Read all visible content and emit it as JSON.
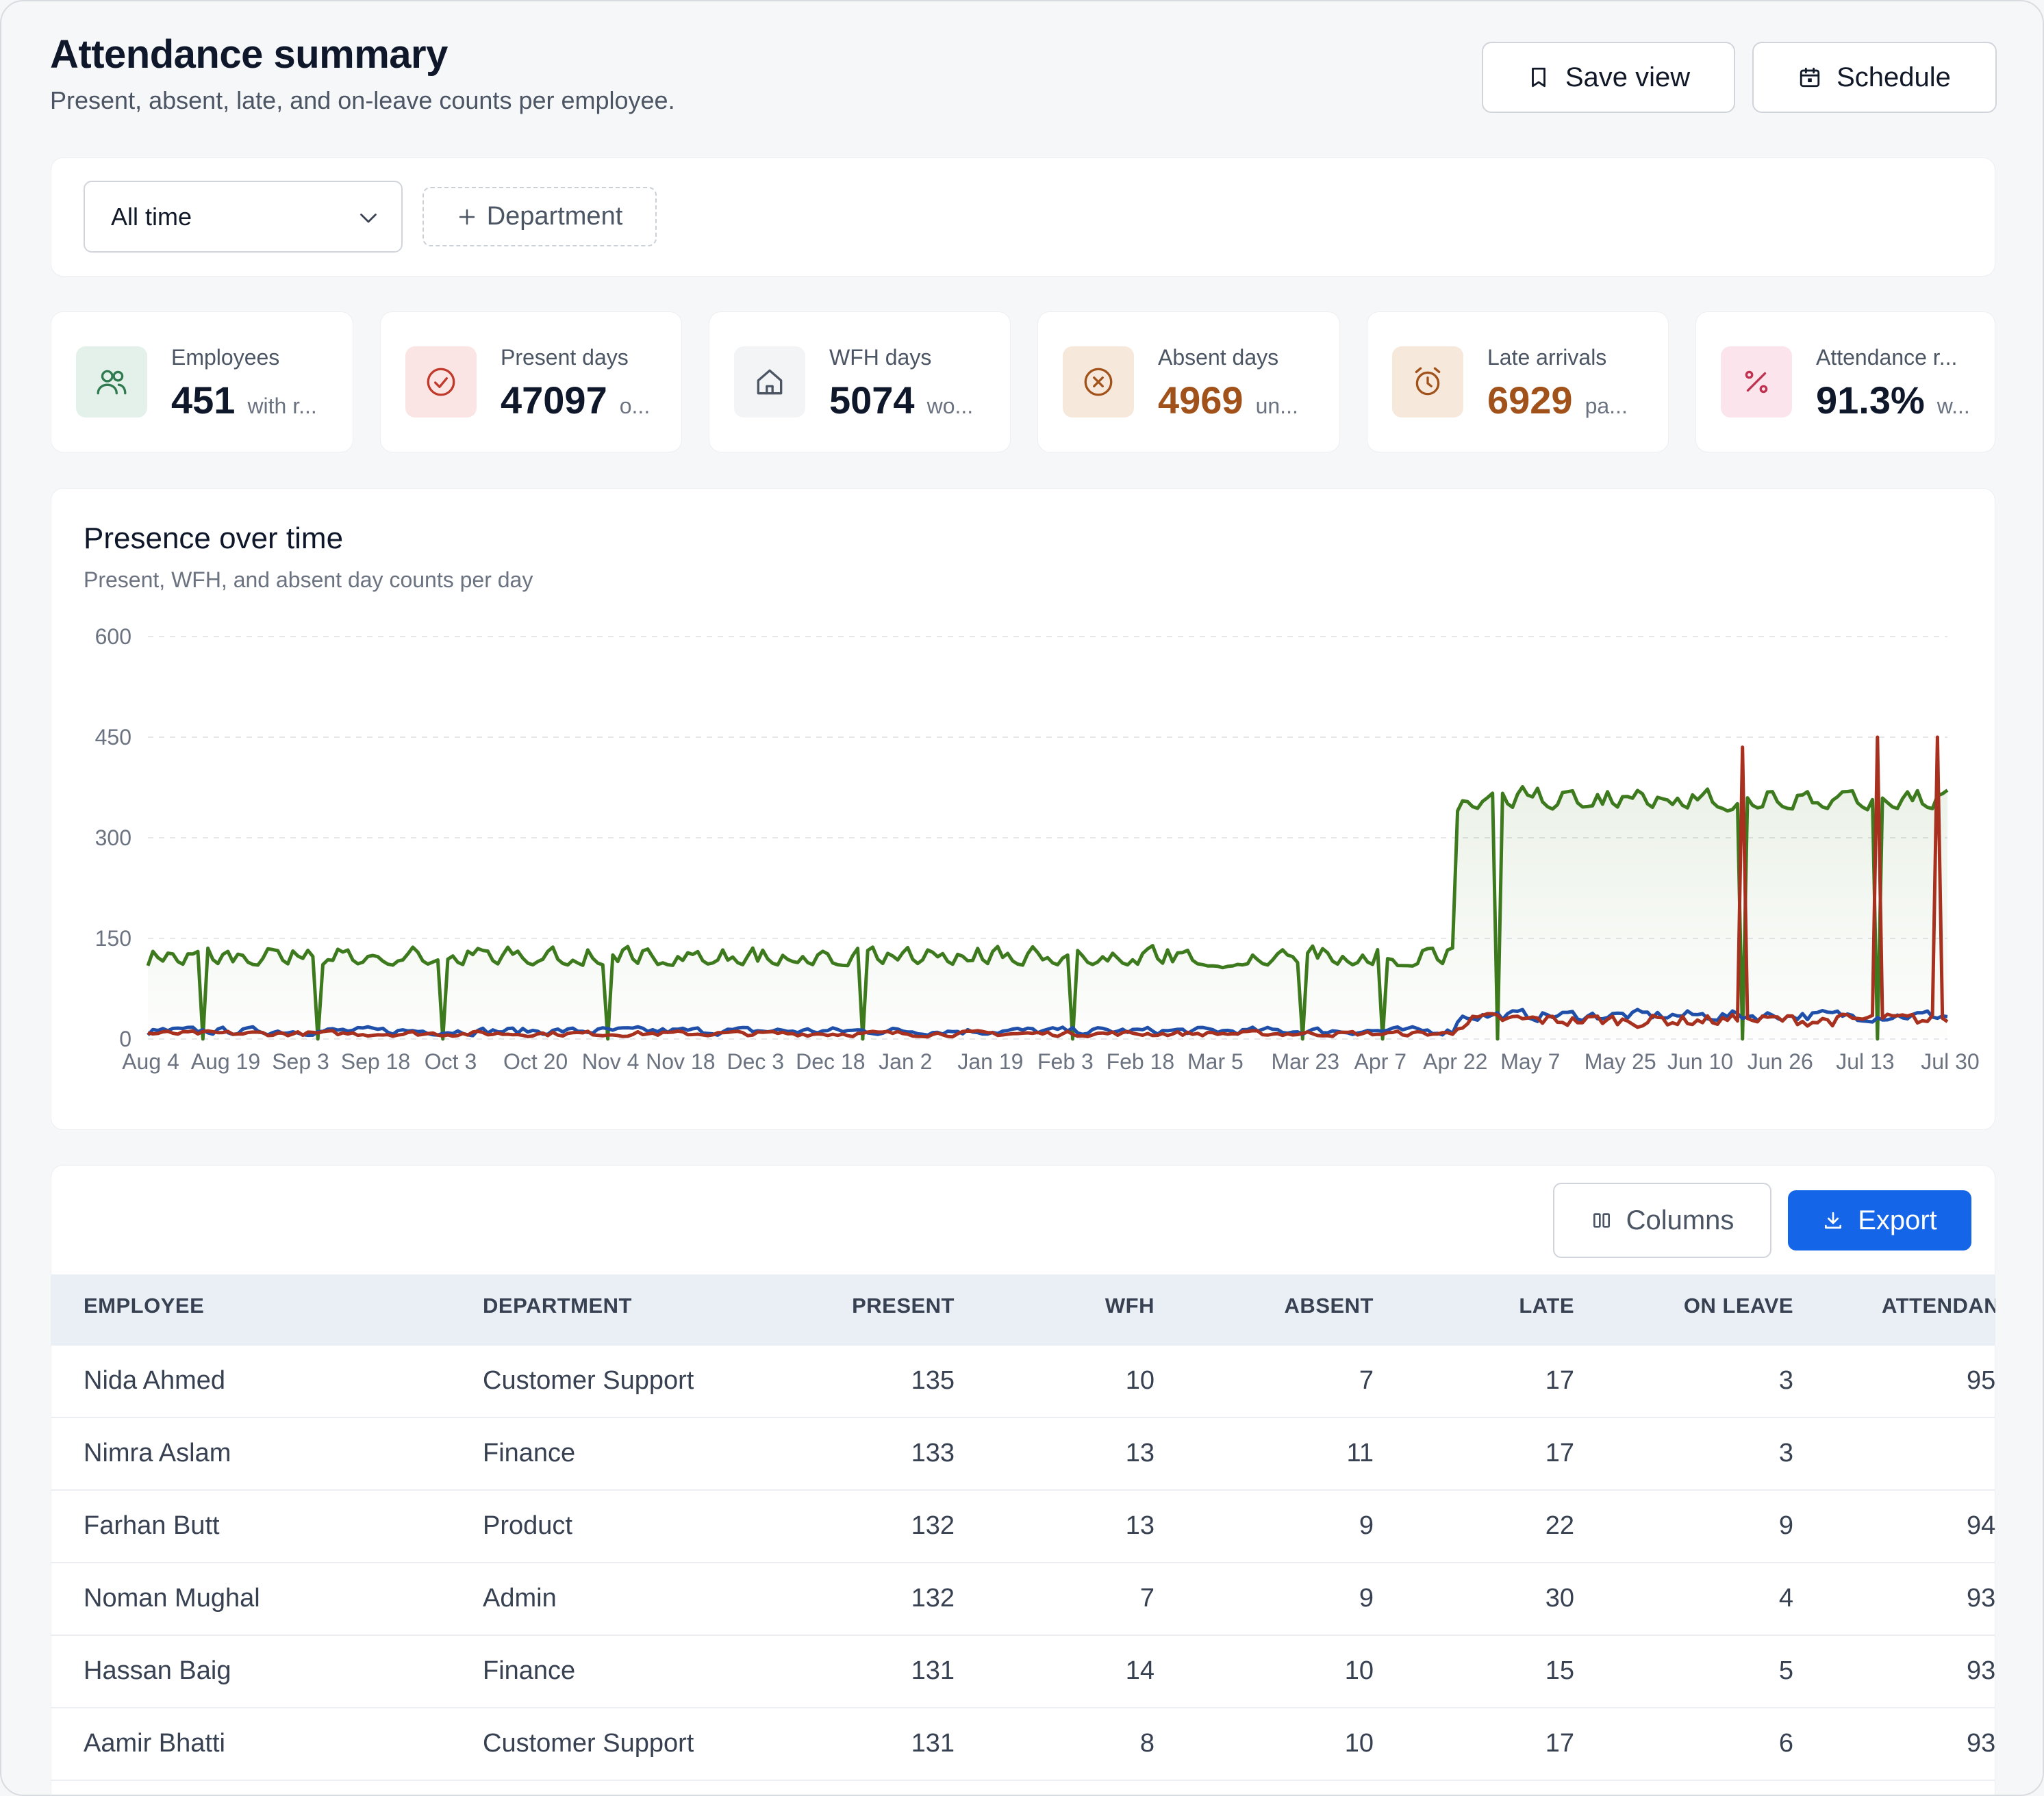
{
  "header": {
    "title": "Attendance summary",
    "subtitle": "Present, absent, late, and on-leave counts per employee.",
    "save_view_label": "Save view",
    "schedule_label": "Schedule"
  },
  "filters": {
    "period_value": "All time",
    "add_department_label": "Department"
  },
  "stats": [
    {
      "label": "Employees",
      "value": "451",
      "note": "with r...",
      "icon": "users-icon",
      "accent": "#0f172a",
      "icon_bg": "#e3f1ea",
      "icon_color": "#2f7a4f"
    },
    {
      "label": "Present days",
      "value": "47097",
      "note": "o...",
      "icon": "check-circle-icon",
      "accent": "#0f172a",
      "icon_bg": "#fbe4e4",
      "icon_color": "#c0392b"
    },
    {
      "label": "WFH days",
      "value": "5074",
      "note": "wo...",
      "icon": "home-icon",
      "accent": "#0f172a",
      "icon_bg": "#f3f4f6",
      "icon_color": "#4b5563"
    },
    {
      "label": "Absent days",
      "value": "4969",
      "note": "un...",
      "icon": "x-circle-icon",
      "accent": "#a0521a",
      "icon_bg": "#f6e8db",
      "icon_color": "#a0521a"
    },
    {
      "label": "Late arrivals",
      "value": "6929",
      "note": "pa...",
      "icon": "alarm-clock-icon",
      "accent": "#a0521a",
      "icon_bg": "#f6e8db",
      "icon_color": "#a0521a"
    },
    {
      "label": "Attendance r...",
      "value": "91.3%",
      "note": "w...",
      "icon": "percent-icon",
      "accent": "#0f172a",
      "icon_bg": "#fbe4ec",
      "icon_color": "#c0304f"
    }
  ],
  "chart": {
    "title": "Presence over time",
    "subtitle": "Present, WFH, and absent day counts per day"
  },
  "chart_data": {
    "type": "line",
    "ylim": [
      0,
      600
    ],
    "yticks": [
      0,
      150,
      300,
      450,
      600
    ],
    "grid": true,
    "x_tick_labels": [
      "Aug 4",
      "Aug 19",
      "Sep 3",
      "Sep 18",
      "Oct 3",
      "Oct 20",
      "Nov 4",
      "Nov 18",
      "Dec 3",
      "Dec 18",
      "Jan 2",
      "Jan 19",
      "Feb 3",
      "Feb 18",
      "Mar 5",
      "Mar 23",
      "Apr 7",
      "Apr 22",
      "May 7",
      "May 25",
      "Jun 10",
      "Jun 26",
      "Jul 13",
      "Jul 30"
    ],
    "x_range": [
      "Aug 4",
      "Jul 30"
    ],
    "series": [
      {
        "key": "present",
        "color": "#3d7a1e",
        "fill": true,
        "segments": [
          {
            "from": "Aug 4",
            "to": "Apr 22",
            "typical": 125,
            "range": [
              105,
              150
            ]
          },
          {
            "from": "Apr 22",
            "to": "Jul 30",
            "typical": 360,
            "range": [
              340,
              390
            ]
          }
        ],
        "dips_to_zero": [
          "Aug 15",
          "Sep 7",
          "Oct 2",
          "Nov 4",
          "Dec 25",
          "Feb 5",
          "Mar 23",
          "Apr 8",
          "May 1",
          "Jun 19",
          "Jul 16"
        ]
      },
      {
        "key": "wfh",
        "color": "#1f4fa8",
        "fill": false,
        "segments": [
          {
            "from": "Aug 4",
            "to": "Apr 22",
            "typical": 12,
            "range": [
              5,
              22
            ]
          },
          {
            "from": "Apr 22",
            "to": "Jul 30",
            "typical": 35,
            "range": [
              25,
              50
            ]
          }
        ]
      },
      {
        "key": "absent",
        "color": "#a8301e",
        "fill": false,
        "segments": [
          {
            "from": "Aug 4",
            "to": "Apr 22",
            "typical": 8,
            "range": [
              3,
              15
            ]
          },
          {
            "from": "Apr 22",
            "to": "Jul 30",
            "typical": 28,
            "range": [
              15,
              45
            ]
          }
        ],
        "spikes": [
          {
            "x": "Jun 19",
            "value": 435
          },
          {
            "x": "Jul 16",
            "value": 450
          },
          {
            "x": "Jul 28",
            "value": 450
          }
        ]
      }
    ]
  },
  "table": {
    "columns_label": "Columns",
    "export_label": "Export",
    "headers": [
      "EMPLOYEE",
      "DEPARTMENT",
      "PRESENT",
      "WFH",
      "ABSENT",
      "LATE",
      "ON LEAVE",
      "ATTENDAN"
    ],
    "rows": [
      {
        "employee": "Nida Ahmed",
        "department": "Customer Support",
        "present": "135",
        "wfh": "10",
        "absent": "7",
        "late": "17",
        "on_leave": "3",
        "attendance": "95"
      },
      {
        "employee": "Nimra Aslam",
        "department": "Finance",
        "present": "133",
        "wfh": "13",
        "absent": "11",
        "late": "17",
        "on_leave": "3",
        "attendance": ""
      },
      {
        "employee": "Farhan Butt",
        "department": "Product",
        "present": "132",
        "wfh": "13",
        "absent": "9",
        "late": "22",
        "on_leave": "9",
        "attendance": "94"
      },
      {
        "employee": "Noman Mughal",
        "department": "Admin",
        "present": "132",
        "wfh": "7",
        "absent": "9",
        "late": "30",
        "on_leave": "4",
        "attendance": "93"
      },
      {
        "employee": "Hassan Baig",
        "department": "Finance",
        "present": "131",
        "wfh": "14",
        "absent": "10",
        "late": "15",
        "on_leave": "5",
        "attendance": "93"
      },
      {
        "employee": "Aamir Bhatti",
        "department": "Customer Support",
        "present": "131",
        "wfh": "8",
        "absent": "10",
        "late": "17",
        "on_leave": "6",
        "attendance": "93"
      }
    ]
  }
}
